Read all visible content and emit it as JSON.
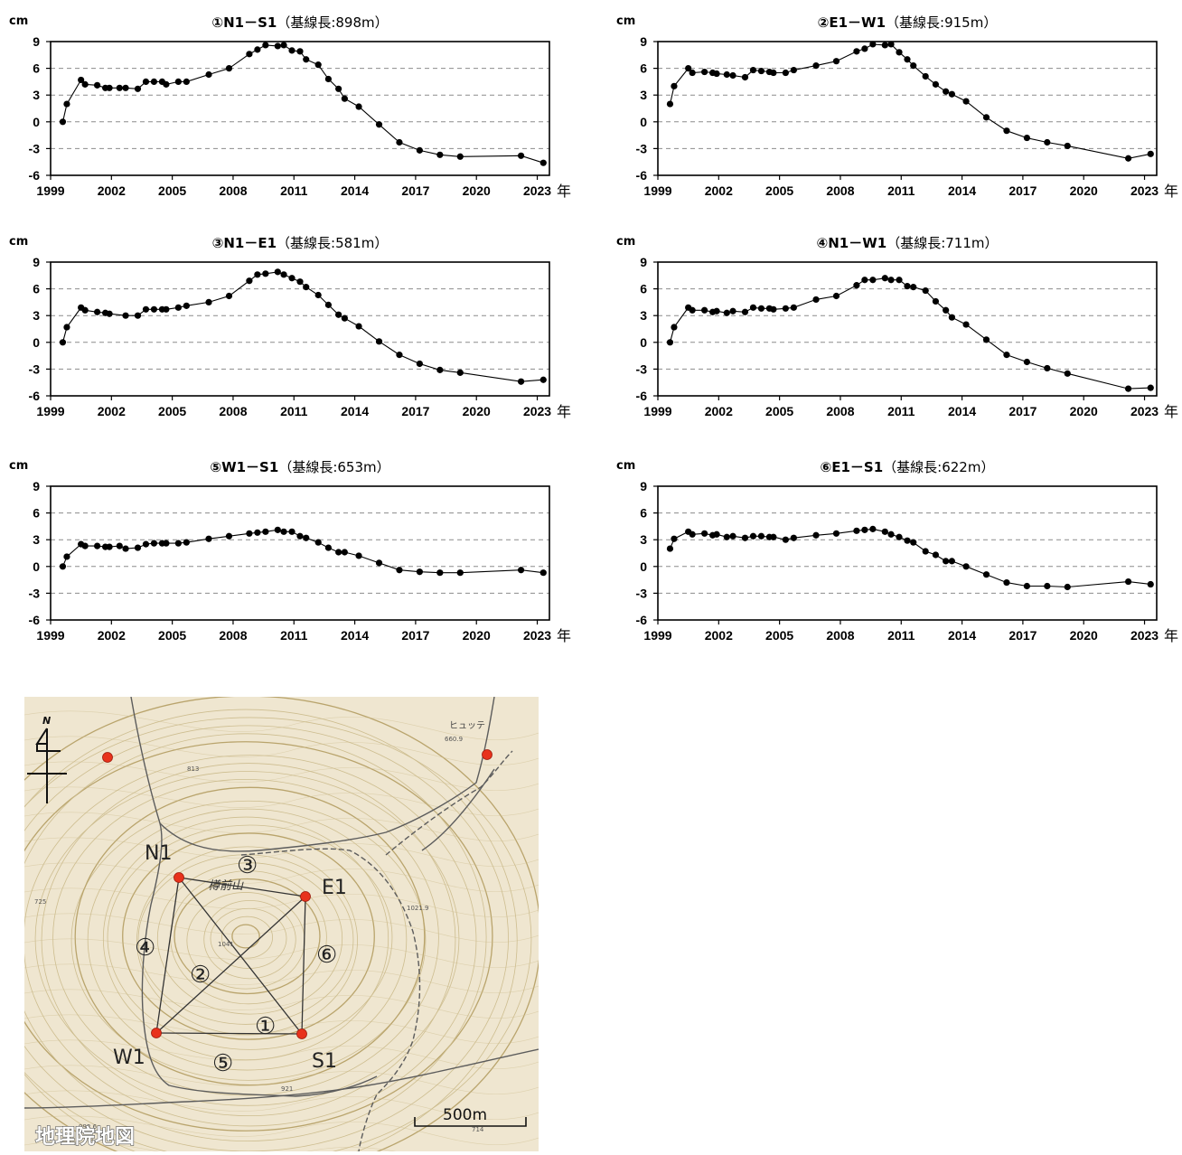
{
  "chart_data": [
    {
      "type": "line",
      "title": "①N1－S1",
      "subtitle": "（基線長:898m）",
      "ylabel": "cm",
      "xlabel_suffix": "年",
      "ylim": [
        -6,
        9
      ],
      "yticks": [
        "9",
        "6",
        "3",
        "0",
        "-3",
        "-6"
      ],
      "xlim": [
        1999,
        2023.6
      ],
      "xticks": [
        "1999",
        "2002",
        "2005",
        "2008",
        "2011",
        "2014",
        "2017",
        "2020",
        "2023"
      ],
      "grid": "dashed-horizontal",
      "series": [
        {
          "x": [
            1999.6,
            1999.8,
            2000.5,
            2000.7,
            2001.3,
            2001.7,
            2001.9,
            2002.4,
            2002.7,
            2003.3,
            2003.7,
            2004.1,
            2004.5,
            2004.7,
            2005.3,
            2005.7,
            2006.8,
            2007.8,
            2008.8,
            2009.2,
            2009.6,
            2010.2,
            2010.5,
            2010.9,
            2011.3,
            2011.6,
            2012.2,
            2012.7,
            2013.2,
            2013.5,
            2014.2,
            2015.2,
            2016.2,
            2017.2,
            2018.2,
            2019.2,
            2022.2,
            2023.3
          ],
          "y": [
            0.0,
            2.0,
            4.7,
            4.2,
            4.1,
            3.8,
            3.8,
            3.8,
            3.8,
            3.7,
            4.5,
            4.5,
            4.5,
            4.2,
            4.5,
            4.5,
            5.3,
            6.0,
            7.6,
            8.1,
            8.6,
            8.5,
            8.6,
            8.0,
            7.9,
            7.0,
            6.4,
            4.8,
            3.7,
            2.6,
            1.7,
            -0.3,
            -2.3,
            -3.2,
            -3.7,
            -3.9,
            -3.8,
            -4.6
          ]
        }
      ]
    },
    {
      "type": "line",
      "title": "②E1－W1",
      "subtitle": "（基線長:915m）",
      "ylabel": "cm",
      "xlabel_suffix": "年",
      "ylim": [
        -6,
        9
      ],
      "yticks": [
        "9",
        "6",
        "3",
        "0",
        "-3",
        "-6"
      ],
      "xlim": [
        1999,
        2023.6
      ],
      "xticks": [
        "1999",
        "2002",
        "2005",
        "2008",
        "2011",
        "2014",
        "2017",
        "2020",
        "2023"
      ],
      "grid": "dashed-horizontal",
      "series": [
        {
          "x": [
            1999.6,
            1999.8,
            2000.5,
            2000.7,
            2001.3,
            2001.7,
            2001.9,
            2002.4,
            2002.7,
            2003.3,
            2003.7,
            2004.1,
            2004.5,
            2004.7,
            2005.3,
            2005.7,
            2006.8,
            2007.8,
            2008.8,
            2009.2,
            2009.6,
            2010.2,
            2010.5,
            2010.9,
            2011.3,
            2011.6,
            2012.2,
            2012.7,
            2013.2,
            2013.5,
            2014.2,
            2015.2,
            2016.2,
            2017.2,
            2018.2,
            2019.2,
            2022.2,
            2023.3
          ],
          "y": [
            2.0,
            4.0,
            6.0,
            5.5,
            5.6,
            5.5,
            5.4,
            5.3,
            5.2,
            5.0,
            5.8,
            5.7,
            5.6,
            5.5,
            5.5,
            5.8,
            6.3,
            6.8,
            7.9,
            8.2,
            8.7,
            8.6,
            8.7,
            7.8,
            7.0,
            6.3,
            5.1,
            4.2,
            3.4,
            3.1,
            2.3,
            0.5,
            -1.0,
            -1.8,
            -2.3,
            -2.7,
            -4.1,
            -3.6
          ]
        }
      ]
    },
    {
      "type": "line",
      "title": "③N1－E1",
      "subtitle": "（基線長:581m）",
      "ylabel": "cm",
      "xlabel_suffix": "年",
      "ylim": [
        -6,
        9
      ],
      "yticks": [
        "9",
        "6",
        "3",
        "0",
        "-3",
        "-6"
      ],
      "xlim": [
        1999,
        2023.6
      ],
      "xticks": [
        "1999",
        "2002",
        "2005",
        "2008",
        "2011",
        "2014",
        "2017",
        "2020",
        "2023"
      ],
      "grid": "dashed-horizontal",
      "series": [
        {
          "x": [
            1999.6,
            1999.8,
            2000.5,
            2000.7,
            2001.3,
            2001.7,
            2001.9,
            2002.7,
            2003.3,
            2003.7,
            2004.1,
            2004.5,
            2004.7,
            2005.3,
            2005.7,
            2006.8,
            2007.8,
            2008.8,
            2009.2,
            2009.6,
            2010.2,
            2010.5,
            2010.9,
            2011.3,
            2011.6,
            2012.2,
            2012.7,
            2013.2,
            2013.5,
            2014.2,
            2015.2,
            2016.2,
            2017.2,
            2018.2,
            2019.2,
            2022.2,
            2023.3
          ],
          "y": [
            0.0,
            1.7,
            3.9,
            3.6,
            3.4,
            3.3,
            3.2,
            3.0,
            3.0,
            3.7,
            3.7,
            3.7,
            3.7,
            3.9,
            4.1,
            4.5,
            5.2,
            6.9,
            7.6,
            7.7,
            7.9,
            7.6,
            7.2,
            6.8,
            6.2,
            5.3,
            4.2,
            3.1,
            2.7,
            1.8,
            0.1,
            -1.4,
            -2.4,
            -3.1,
            -3.4,
            -4.4,
            -4.2
          ]
        }
      ]
    },
    {
      "type": "line",
      "title": "④N1－W1",
      "subtitle": "（基線長:711m）",
      "ylabel": "cm",
      "xlabel_suffix": "年",
      "ylim": [
        -6,
        9
      ],
      "yticks": [
        "9",
        "6",
        "3",
        "0",
        "-3",
        "-6"
      ],
      "xlim": [
        1999,
        2023.6
      ],
      "xticks": [
        "1999",
        "2002",
        "2005",
        "2008",
        "2011",
        "2014",
        "2017",
        "2020",
        "2023"
      ],
      "grid": "dashed-horizontal",
      "series": [
        {
          "x": [
            1999.6,
            1999.8,
            2000.5,
            2000.7,
            2001.3,
            2001.7,
            2001.9,
            2002.4,
            2002.7,
            2003.3,
            2003.7,
            2004.1,
            2004.5,
            2004.7,
            2005.3,
            2005.7,
            2006.8,
            2007.8,
            2008.8,
            2009.2,
            2009.6,
            2010.2,
            2010.5,
            2010.9,
            2011.3,
            2011.6,
            2012.2,
            2012.7,
            2013.2,
            2013.5,
            2014.2,
            2015.2,
            2016.2,
            2017.2,
            2018.2,
            2019.2,
            2022.2,
            2023.3
          ],
          "y": [
            0.0,
            1.7,
            3.9,
            3.6,
            3.6,
            3.4,
            3.5,
            3.3,
            3.5,
            3.4,
            3.9,
            3.8,
            3.8,
            3.7,
            3.8,
            3.9,
            4.8,
            5.2,
            6.4,
            7.0,
            7.0,
            7.2,
            7.0,
            7.0,
            6.3,
            6.2,
            5.8,
            4.6,
            3.6,
            2.8,
            2.0,
            0.3,
            -1.4,
            -2.2,
            -2.9,
            -3.5,
            -5.2,
            -5.1
          ]
        }
      ]
    },
    {
      "type": "line",
      "title": "⑤W1－S1",
      "subtitle": "（基線長:653m）",
      "ylabel": "cm",
      "xlabel_suffix": "年",
      "ylim": [
        -6,
        9
      ],
      "yticks": [
        "9",
        "6",
        "3",
        "0",
        "-3",
        "-6"
      ],
      "xlim": [
        1999,
        2023.6
      ],
      "xticks": [
        "1999",
        "2002",
        "2005",
        "2008",
        "2011",
        "2014",
        "2017",
        "2020",
        "2023"
      ],
      "grid": "dashed-horizontal",
      "series": [
        {
          "x": [
            1999.6,
            1999.8,
            2000.5,
            2000.7,
            2001.3,
            2001.7,
            2001.9,
            2002.4,
            2002.7,
            2003.3,
            2003.7,
            2004.1,
            2004.5,
            2004.7,
            2005.3,
            2005.7,
            2006.8,
            2007.8,
            2008.8,
            2009.2,
            2009.6,
            2010.2,
            2010.5,
            2010.9,
            2011.3,
            2011.6,
            2012.2,
            2012.7,
            2013.2,
            2013.5,
            2014.2,
            2015.2,
            2016.2,
            2017.2,
            2018.2,
            2019.2,
            2022.2,
            2023.3
          ],
          "y": [
            0.0,
            1.1,
            2.5,
            2.3,
            2.3,
            2.2,
            2.2,
            2.3,
            2.0,
            2.1,
            2.5,
            2.6,
            2.6,
            2.6,
            2.6,
            2.7,
            3.1,
            3.4,
            3.7,
            3.8,
            3.9,
            4.1,
            3.9,
            3.9,
            3.4,
            3.2,
            2.7,
            2.1,
            1.6,
            1.6,
            1.2,
            0.4,
            -0.4,
            -0.6,
            -0.7,
            -0.7,
            -0.4,
            -0.7
          ]
        }
      ]
    },
    {
      "type": "line",
      "title": "⑥E1－S1",
      "subtitle": "（基線長:622m）",
      "ylabel": "cm",
      "xlabel_suffix": "年",
      "ylim": [
        -6,
        9
      ],
      "yticks": [
        "9",
        "6",
        "3",
        "0",
        "-3",
        "-6"
      ],
      "xlim": [
        1999,
        2023.6
      ],
      "xticks": [
        "1999",
        "2002",
        "2005",
        "2008",
        "2011",
        "2014",
        "2017",
        "2020",
        "2023"
      ],
      "grid": "dashed-horizontal",
      "series": [
        {
          "x": [
            1999.6,
            1999.8,
            2000.5,
            2000.7,
            2001.3,
            2001.7,
            2001.9,
            2002.4,
            2002.7,
            2003.3,
            2003.7,
            2004.1,
            2004.5,
            2004.7,
            2005.3,
            2005.7,
            2006.8,
            2007.8,
            2008.8,
            2009.2,
            2009.6,
            2010.2,
            2010.5,
            2010.9,
            2011.3,
            2011.6,
            2012.2,
            2012.7,
            2013.2,
            2013.5,
            2014.2,
            2015.2,
            2016.2,
            2017.2,
            2018.2,
            2019.2,
            2022.2,
            2023.3
          ],
          "y": [
            2.0,
            3.1,
            3.9,
            3.6,
            3.7,
            3.5,
            3.6,
            3.3,
            3.4,
            3.2,
            3.4,
            3.4,
            3.3,
            3.3,
            3.0,
            3.2,
            3.5,
            3.7,
            4.0,
            4.1,
            4.2,
            3.9,
            3.6,
            3.3,
            2.9,
            2.7,
            1.7,
            1.3,
            0.6,
            0.6,
            0.0,
            -0.9,
            -1.8,
            -2.2,
            -2.2,
            -2.3,
            -1.7,
            -2.0
          ]
        }
      ]
    }
  ],
  "map": {
    "station_labels": [
      "N1",
      "E1",
      "W1",
      "S1"
    ],
    "baseline_numbers": [
      "①",
      "②",
      "③",
      "④",
      "⑤",
      "⑥"
    ],
    "mountain_name": "樽前山",
    "place_name": "ヒュッテ",
    "elevations": [
      "660.9",
      "1021.9",
      "1041",
      "725",
      "993.6",
      "921",
      "714",
      "813"
    ],
    "north_label": "N",
    "scale_label": "500m",
    "credit": "地理院地図",
    "colors": {
      "background": "#efe6d0",
      "contour": "#cdbd8f",
      "contour_index": "#b9a46c",
      "station": "#e8321c",
      "baseline": "#333333",
      "road": "#5c5c5c"
    }
  }
}
